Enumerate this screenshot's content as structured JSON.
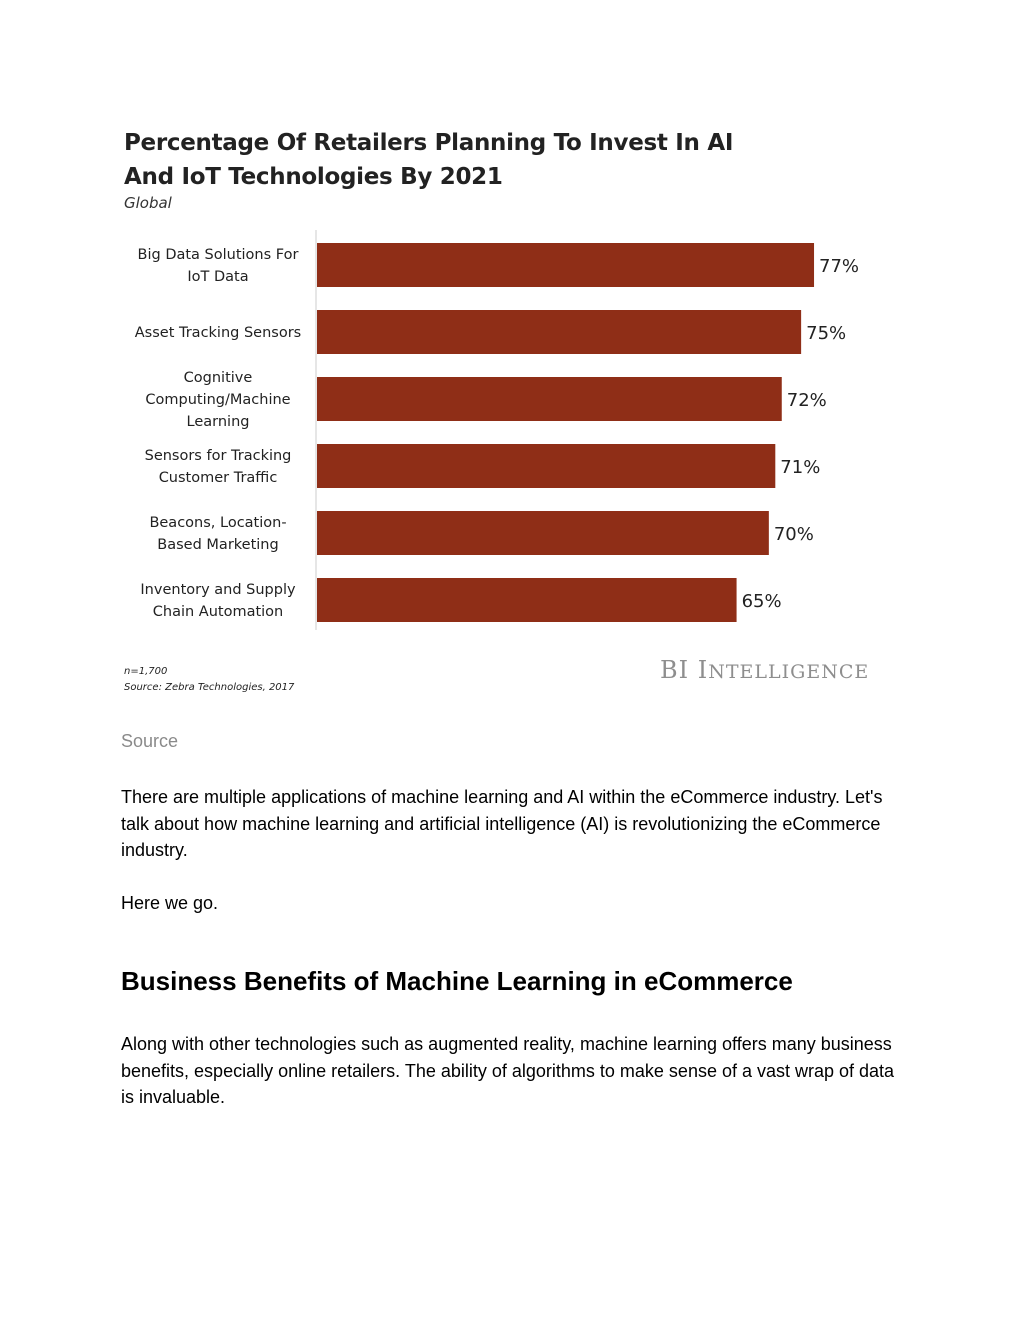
{
  "chart": {
    "title": "Percentage Of Retailers Planning To Invest In AI And IoT Technologies By 2021",
    "subtitle": "Global",
    "note_n": "n=1,700",
    "note_source": "Source: Zebra Technologies, 2017",
    "brand": "BI Intelligence",
    "bar_color": "#8f2e17"
  },
  "chart_data": {
    "type": "bar",
    "orientation": "horizontal",
    "categories": [
      "Big Data Solutions For IoT Data",
      "Asset Tracking Sensors",
      "Cognitive Computing/Machine Learning",
      "Sensors for Tracking Customer Traffic",
      "Beacons, Location-Based Marketing",
      "Inventory and Supply Chain Automation"
    ],
    "category_lines": [
      [
        "Big Data Solutions For",
        "IoT Data"
      ],
      [
        "Asset Tracking Sensors"
      ],
      [
        "Cognitive",
        "Computing/Machine",
        "Learning"
      ],
      [
        "Sensors for Tracking",
        "Customer Traffic"
      ],
      [
        "Beacons, Location-",
        "Based Marketing"
      ],
      [
        "Inventory and Supply",
        "Chain Automation"
      ]
    ],
    "values": [
      77,
      75,
      72,
      71,
      70,
      65
    ],
    "value_labels": [
      "77%",
      "75%",
      "72%",
      "71%",
      "70%",
      "65%"
    ],
    "title": "Percentage Of Retailers Planning To Invest In AI And IoT Technologies By 2021",
    "subtitle": "Global",
    "xlabel": "",
    "ylabel": "",
    "grid": false,
    "legend": "none"
  },
  "article": {
    "source_label": "Source",
    "para1": "There are multiple applications of machine learning and AI within the eCommerce industry. Let's talk about how machine learning and artificial intelligence (AI) is revolutionizing the eCommerce industry.",
    "para2": "Here we go.",
    "heading": "Business Benefits of Machine Learning in eCommerce",
    "para3": "Along with other technologies such as augmented reality, machine learning offers many business benefits, especially online retailers. The ability of algorithms to make sense of a vast wrap of data is invaluable."
  }
}
